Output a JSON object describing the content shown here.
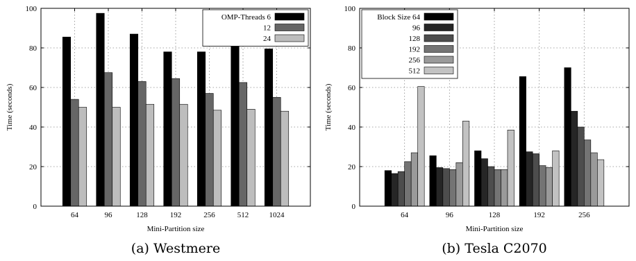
{
  "chart_data": [
    {
      "type": "bar",
      "caption": "(a) Westmere",
      "xlabel": "Mini-Partition size",
      "ylabel": "Time (seconds)",
      "ylim": [
        0,
        100
      ],
      "yticks": [
        0,
        20,
        40,
        60,
        80,
        100
      ],
      "grid": true,
      "legend_position": "top-right",
      "categories": [
        "64",
        "96",
        "128",
        "192",
        "256",
        "512",
        "1024"
      ],
      "series": [
        {
          "name": "OMP-Threads 6",
          "color": "#000000",
          "values": [
            85.5,
            97.5,
            87.0,
            78.0,
            78.0,
            83.0,
            79.5
          ]
        },
        {
          "name": "12",
          "color": "#666666",
          "values": [
            54.0,
            67.5,
            63.0,
            64.5,
            57.0,
            62.5,
            55.0
          ]
        },
        {
          "name": "24",
          "color": "#bdbdbd",
          "values": [
            50.0,
            50.0,
            51.5,
            51.5,
            48.5,
            49.0,
            48.0
          ]
        }
      ]
    },
    {
      "type": "bar",
      "caption": "(b) Tesla C2070",
      "xlabel": "Mini-Partition size",
      "ylabel": "Time (seconds)",
      "ylim": [
        0,
        100
      ],
      "yticks": [
        0,
        20,
        40,
        60,
        80,
        100
      ],
      "grid": true,
      "legend_position": "top-left",
      "categories": [
        "64",
        "96",
        "128",
        "192",
        "256"
      ],
      "series": [
        {
          "name": "Block Size 64",
          "color": "#000000",
          "values": [
            18.0,
            25.5,
            28.0,
            65.5,
            70.0
          ]
        },
        {
          "name": "96",
          "color": "#262626",
          "values": [
            16.5,
            19.5,
            24.0,
            27.5,
            48.0
          ]
        },
        {
          "name": "128",
          "color": "#4d4d4d",
          "values": [
            17.5,
            19.0,
            20.0,
            26.5,
            40.0
          ]
        },
        {
          "name": "192",
          "color": "#747474",
          "values": [
            22.5,
            18.5,
            18.5,
            20.5,
            33.5
          ]
        },
        {
          "name": "256",
          "color": "#9a9a9a",
          "values": [
            27.0,
            22.0,
            18.5,
            19.5,
            27.0
          ]
        },
        {
          "name": "512",
          "color": "#c2c2c2",
          "values": [
            60.5,
            43.0,
            38.5,
            28.0,
            23.5
          ]
        }
      ]
    }
  ]
}
